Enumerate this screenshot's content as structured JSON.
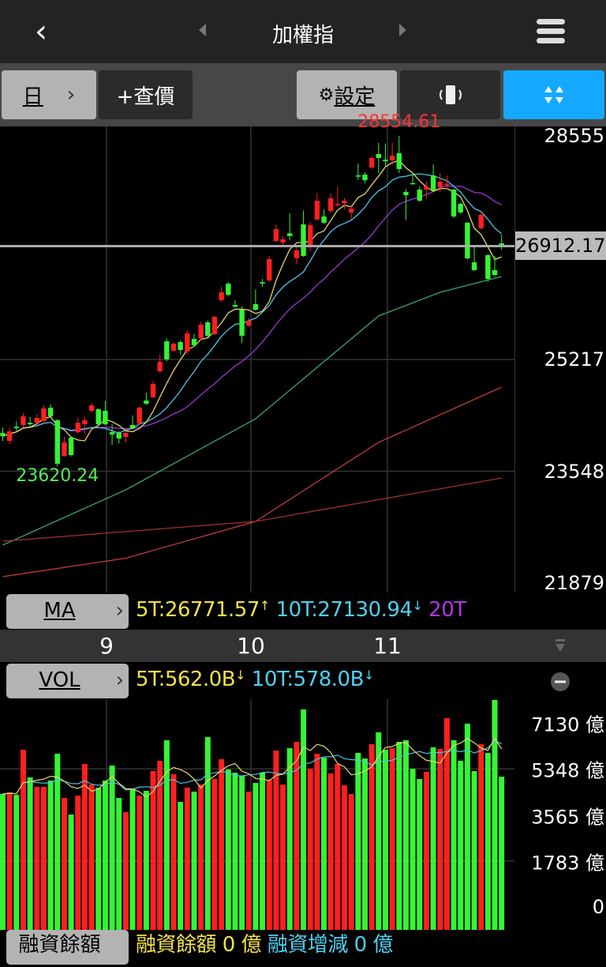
{
  "header": {
    "title": "加權指",
    "back_icon": "chevron-left-icon",
    "prev_icon": "triangle-left-icon",
    "next_icon": "triangle-right-icon",
    "menu_icon": "hamburger-icon"
  },
  "toolbar": {
    "period": "日",
    "period_chevron": "›",
    "quote": "+查價",
    "settings_icon": "gear-icon",
    "settings": "設定",
    "rotate_icon": "rotate-device-icon",
    "collapse_icon": "exit-fullscreen-icon"
  },
  "colors": {
    "up": "#ff1f1f",
    "down": "#33f533",
    "ma5": "#e8d66a",
    "ma10": "#4fc3e8",
    "ma20": "#9b36d6",
    "ma60": "#3aa36a",
    "ma120": "#c43a3a",
    "ma240": "#a03030",
    "accent": "#14a9ff"
  },
  "ma_row": {
    "label": "MA",
    "chevron": "›",
    "ma5": "5T:26771.57",
    "ma5_arrow": "↑",
    "ma10": "10T:27130.94",
    "ma10_arrow": "↓",
    "ma20": "20T"
  },
  "months": [
    "9",
    "10",
    "11"
  ],
  "vol_row": {
    "label": "VOL",
    "chevron": "›",
    "ma5": "5T:562.0B",
    "ma5_arrow": "↓",
    "ma10": "10T:578.0B",
    "ma10_arrow": "↓",
    "minus_icon": "minus-circle-icon",
    "collapse_icon": "double-chevron-down-icon"
  },
  "bottom_row": {
    "label": "融資餘額",
    "balance": "融資餘額 0 億",
    "change": "融資增減 0 億"
  },
  "chart_data": [
    {
      "type": "candlestick",
      "price_axis": {
        "ticks": [
          "28555",
          "25217",
          "23548",
          "21879"
        ],
        "range": [
          21879,
          28555
        ],
        "current": "26912.17"
      },
      "high_label": "28554.61",
      "low_label": "23620.24",
      "month_ticks": [
        {
          "label": "9",
          "index": 15
        },
        {
          "label": "10",
          "index": 36
        },
        {
          "label": "11",
          "index": 56
        }
      ],
      "ohlc": [
        [
          24119,
          24072,
          24200,
          24000
        ],
        [
          24001,
          24143,
          24200,
          23950
        ],
        [
          24214,
          24191,
          24290,
          24150
        ],
        [
          24238,
          24368,
          24420,
          24200
        ],
        [
          24273,
          24250,
          24360,
          24220
        ],
        [
          24273,
          24344,
          24400,
          24230
        ],
        [
          24297,
          24486,
          24530,
          24260
        ],
        [
          24497,
          24368,
          24550,
          24340
        ],
        [
          24309,
          23660,
          24330,
          23620.24
        ],
        [
          23778,
          23979,
          24060,
          23760
        ],
        [
          24049,
          23790,
          24070,
          23770
        ],
        [
          24132,
          24273,
          24350,
          24110
        ],
        [
          24250,
          24309,
          24360,
          24100
        ],
        [
          24450,
          24533,
          24570,
          24420
        ],
        [
          24474,
          24250,
          24490,
          24230
        ],
        [
          24450,
          24250,
          24600,
          24230
        ],
        [
          24132,
          24096,
          24250,
          23940
        ],
        [
          24120,
          24037,
          24150,
          23960
        ],
        [
          24061,
          24120,
          24140,
          23980
        ],
        [
          24238,
          24191,
          24380,
          24180
        ],
        [
          24262,
          24497,
          24510,
          24250
        ],
        [
          24604,
          24556,
          24720,
          24540
        ],
        [
          24651,
          24851,
          24900,
          24640
        ],
        [
          25040,
          25182,
          25290,
          25020
        ],
        [
          25488,
          25217,
          25530,
          25190
        ],
        [
          25347,
          25453,
          25480,
          25330
        ],
        [
          25477,
          25359,
          25500,
          25290
        ],
        [
          25335,
          25606,
          25650,
          25300
        ],
        [
          25524,
          25429,
          25600,
          25400
        ],
        [
          25536,
          25736,
          25780,
          25500
        ],
        [
          25771,
          25571,
          25800,
          25550
        ],
        [
          25594,
          25854,
          25870,
          25580
        ],
        [
          26102,
          26220,
          26300,
          26080
        ],
        [
          26349,
          26184,
          26370,
          26160
        ],
        [
          26031,
          26007,
          26100,
          25990
        ],
        [
          25960,
          25571,
          26010,
          25460
        ],
        [
          25724,
          25795,
          25830,
          25700
        ],
        [
          26043,
          25960,
          26260,
          25940
        ],
        [
          26370,
          26350,
          26420,
          26300
        ],
        [
          26397,
          26715,
          26760,
          26380
        ],
        [
          26986,
          27163,
          27230,
          26970
        ],
        [
          26963,
          27010,
          27060,
          26920
        ],
        [
          27100,
          27060,
          27400,
          27000
        ],
        [
          26727,
          26845,
          26900,
          26640
        ],
        [
          27234,
          26762,
          27440,
          26750
        ],
        [
          26892,
          27222,
          27260,
          26830
        ],
        [
          27305,
          27588,
          27700,
          27290
        ],
        [
          27352,
          27258,
          27460,
          27240
        ],
        [
          27434,
          27623,
          27700,
          27400
        ],
        [
          27520,
          27540,
          27800,
          27500
        ],
        [
          27552,
          27588,
          27630,
          27460
        ],
        [
          27411,
          27470,
          27520,
          27300
        ],
        [
          27965,
          27950,
          28140,
          27900
        ],
        [
          27977,
          27894,
          28010,
          27850
        ],
        [
          28083,
          28225,
          28260,
          28060
        ],
        [
          28284,
          28225,
          28450,
          28000
        ],
        [
          28201,
          28177,
          28440,
          28100
        ],
        [
          28189,
          28260,
          28450,
          28120
        ],
        [
          28296,
          28060,
          28554.61,
          28000
        ],
        [
          27718,
          27670,
          27760,
          27300
        ],
        [
          27850,
          27840,
          28000,
          27830
        ],
        [
          27753,
          27588,
          27800,
          27570
        ],
        [
          27753,
          27800,
          27880,
          27620
        ],
        [
          27965,
          27741,
          28130,
          27720
        ],
        [
          27788,
          27871,
          28000,
          27720
        ],
        [
          27820,
          27840,
          27960,
          27760
        ],
        [
          27753,
          27352,
          27770,
          27330
        ],
        [
          27541,
          27411,
          27560,
          27390
        ],
        [
          27258,
          26727,
          27270,
          26710
        ],
        [
          26668,
          26550,
          26900,
          26540
        ],
        [
          27175,
          27376,
          27420,
          27160
        ],
        [
          26774,
          26420,
          26790,
          26380
        ],
        [
          26550,
          26479,
          26760,
          26450
        ],
        [
          26951,
          26912.17,
          27080,
          26850
        ]
      ],
      "ma_computed": [
        {
          "period": 5,
          "color_key": "ma5"
        },
        {
          "period": 10,
          "color_key": "ma10"
        },
        {
          "period": 20,
          "color_key": "ma20"
        }
      ],
      "ma_long": [
        {
          "color_key": "ma60",
          "points": [
            [
              0,
              22445
            ],
            [
              18,
              23271
            ],
            [
              37,
              24332
            ],
            [
              55,
              25866
            ],
            [
              64,
              26220
            ],
            [
              73,
              26455
            ]
          ]
        },
        {
          "color_key": "ma120",
          "points": [
            [
              0,
              21974
            ],
            [
              18,
              22250
            ],
            [
              37,
              22799
            ],
            [
              55,
              23979
            ],
            [
              73,
              24804
            ]
          ]
        },
        {
          "color_key": "ma240",
          "points": [
            [
              0,
              22504
            ],
            [
              37,
              22799
            ],
            [
              73,
              23448
            ]
          ]
        }
      ]
    },
    {
      "type": "bar",
      "unit": "億",
      "axis_ticks": [
        "7130 億",
        "5348 億",
        "3565 億",
        "1783 億",
        "0"
      ],
      "range": [
        0,
        7130
      ],
      "values": [
        4376,
        4437,
        4345,
        6090,
        5018,
        4651,
        4651,
        4896,
        5936,
        4223,
        3580,
        4315,
        5539,
        4743,
        4620,
        4896,
        5478,
        4223,
        3672,
        4590,
        4315,
        4498,
        5263,
        5661,
        6457,
        5141,
        4070,
        4620,
        4467,
        4743,
        6579,
        4957,
        5722,
        5325,
        5202,
        5080,
        4467,
        4804,
        5202,
        4927,
        6059,
        4743,
        6151,
        6396,
        7650,
        5355,
        5936,
        5784,
        5172,
        5539,
        4713,
        4376,
        5967,
        5753,
        6304,
        6763,
        6090,
        6151,
        6396,
        6457,
        5355,
        4957,
        5233,
        6182,
        6120,
        7314,
        6457,
        5661,
        7100,
        5263,
        6304,
        5967,
        8017,
        5049
      ]
    }
  ]
}
